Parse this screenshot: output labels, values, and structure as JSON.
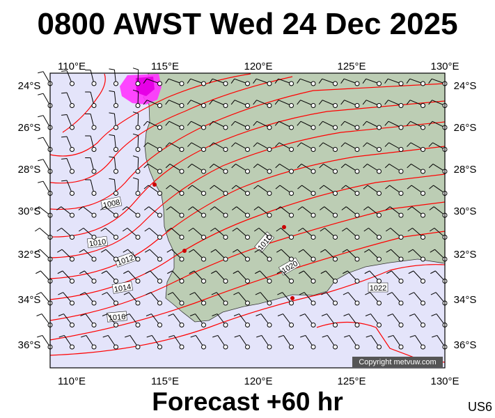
{
  "header": {
    "title": "0800 AWST Wed 24 Dec 2025"
  },
  "footer": {
    "forecast": "Forecast +60 hr",
    "region_code": "US6"
  },
  "map": {
    "longitude_ticks": [
      "110°E",
      "115°E",
      "120°E",
      "125°E",
      "130°E"
    ],
    "latitude_ticks": [
      "24°S",
      "26°S",
      "28°S",
      "30°S",
      "32°S",
      "34°S",
      "36°S"
    ],
    "isobar_labels": [
      "1008",
      "1010",
      "1012",
      "1014",
      "1016",
      "1018",
      "1020",
      "1022"
    ],
    "copyright": "Copyright metvuw.com",
    "colors": {
      "ocean": "#e4e4fa",
      "land": "#bccdb4",
      "isobar": "#ff0000",
      "rain": "#ff00ff"
    }
  }
}
